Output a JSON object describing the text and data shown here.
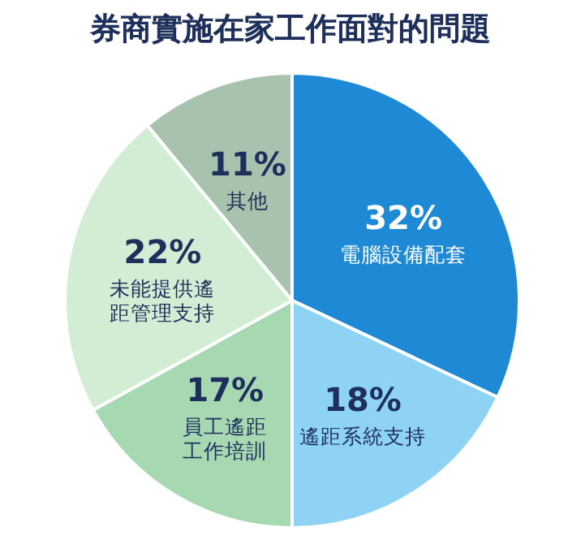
{
  "chart_data": {
    "type": "pie",
    "title": "券商實施在家工作面對的問題",
    "categories": [
      "電腦設備配套",
      "遙距系統支持",
      "員工遙距工作培訓",
      "未能提供遙距管理支持",
      "其他"
    ],
    "values": [
      32,
      18,
      17,
      22,
      11
    ],
    "value_labels": [
      "32%",
      "18%",
      "17%",
      "22%",
      "11%"
    ],
    "colors": [
      "#1e8ad6",
      "#8ed3f3",
      "#a6d8b2",
      "#d3edd4",
      "#a9c2ad"
    ]
  }
}
